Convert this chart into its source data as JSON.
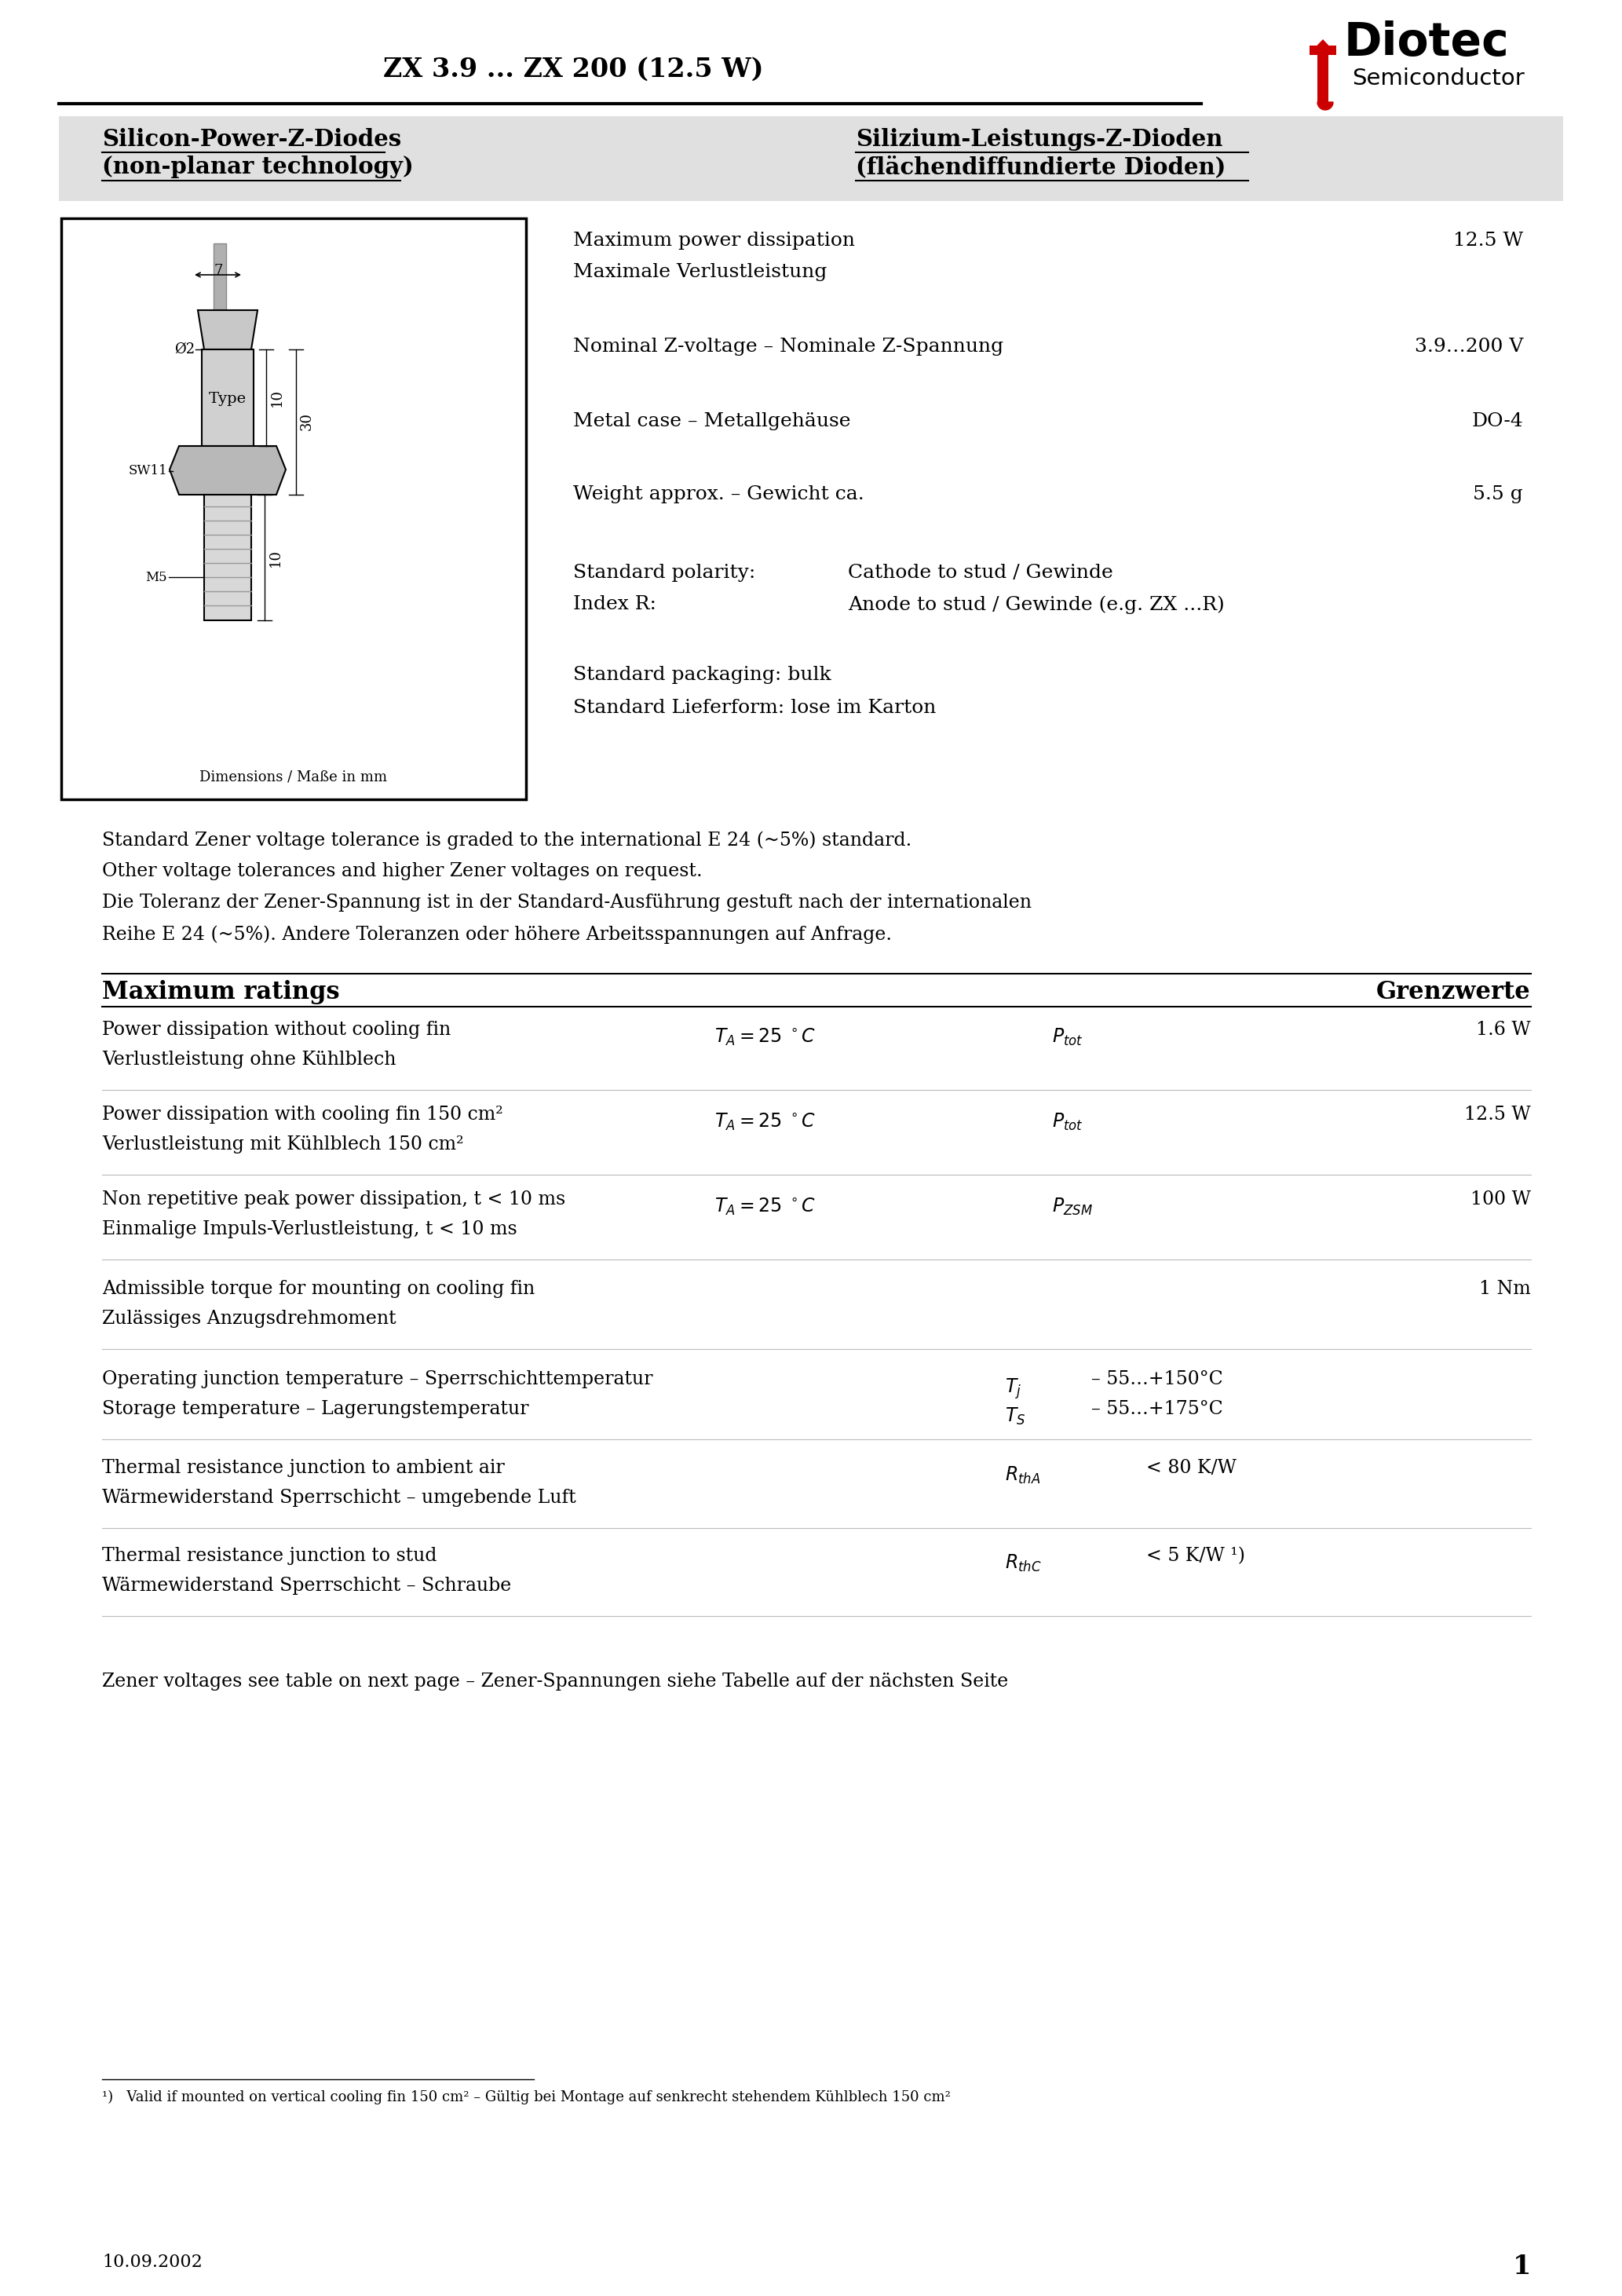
{
  "title_part": "ZX 3.9 ... ZX 200 (12.5 W)",
  "company_name": "Diotec",
  "company_sub": "Semiconductor",
  "header_left_line1": "Silicon-Power-Z-Diodes",
  "header_left_line2": "(non-planar technology)",
  "header_right_line1": "Silizium-Leistungs-Z-Dioden",
  "header_right_line2": "(flächendiffundierte Dioden)",
  "logo_color": "#cc0000",
  "header_bg": "#e0e0e0",
  "spec1_label1": "Maximum power dissipation",
  "spec1_label2": "Maximale Verlustleistung",
  "spec1_value": "12.5 W",
  "spec2_label": "Nominal Z-voltage – Nominale Z-Spannung",
  "spec2_value": "3.9…200 V",
  "spec3_label": "Metal case – Metallgehäuse",
  "spec3_value": "DO-4",
  "spec4_label": "Weight approx. – Gewicht ca.",
  "spec4_value": "5.5 g",
  "polarity_label": "Standard polarity:",
  "polarity_value": "Cathode to stud / Gewinde",
  "index_label": "Index R:",
  "index_value": "Anode to stud / Gewinde (e.g. ZX ...R)",
  "pkg_line1": "Standard packaging: bulk",
  "pkg_line2": "Standard Lieferform: lose im Karton",
  "dim_label": "Dimensions / Maße in mm",
  "note1": "Standard Zener voltage tolerance is graded to the international E 24 (~5%) standard.",
  "note2": "Other voltage tolerances and higher Zener voltages on request.",
  "note3": "Die Toleranz der Zener-Spannung ist in der Standard-Ausführung gestuft nach der internationalen",
  "note4": "Reihe E 24 (~5%). Andere Toleranzen oder höhere Arbeitsspannungen auf Anfrage.",
  "sec_left": "Maximum ratings",
  "sec_right": "Grenzwerte",
  "r1_l1": "Power dissipation without cooling fin",
  "r1_l2": "Verlustleistung ohne Kühlblech",
  "r1_val": "1.6 W",
  "r2_l1": "Power dissipation with cooling fin 150 cm²",
  "r2_l2": "Verlustleistung mit Kühlblech 150 cm²",
  "r2_val": "12.5 W",
  "r3_l1": "Non repetitive peak power dissipation, t < 10 ms",
  "r3_l2": "Einmalige Impuls-Verlustleistung, t < 10 ms",
  "r3_val": "100 W",
  "r4_l1": "Admissible torque for mounting on cooling fin",
  "r4_l2": "Zulässiges Anzugsdrehmoment",
  "r4_val": "1 Nm",
  "r5_l1": "Operating junction temperature – Sperrschichttemperatur",
  "r5_l2": "Storage temperature – Lagerungstemperatur",
  "r5_val1": "– 55…+150°C",
  "r5_val2": "– 55…+175°C",
  "r6_l1": "Thermal resistance junction to ambient air",
  "r6_l2": "Wärmewiderstand Sperrschicht – umgebende Luft",
  "r6_val": "< 80 K/W",
  "r7_l1": "Thermal resistance junction to stud",
  "r7_l2": "Wärmewiderstand Sperrschicht – Schraube",
  "r7_val": "< 5 K/W ¹)",
  "zener_note": "Zener voltages see table on next page – Zener-Spannungen siehe Tabelle auf der nächsten Seite",
  "footnote": "¹)   Valid if mounted on vertical cooling fin 150 cm² – Gültig bei Montage auf senkrecht stehendem Kühlblech 150 cm²",
  "date": "10.09.2002",
  "page_num": "1"
}
